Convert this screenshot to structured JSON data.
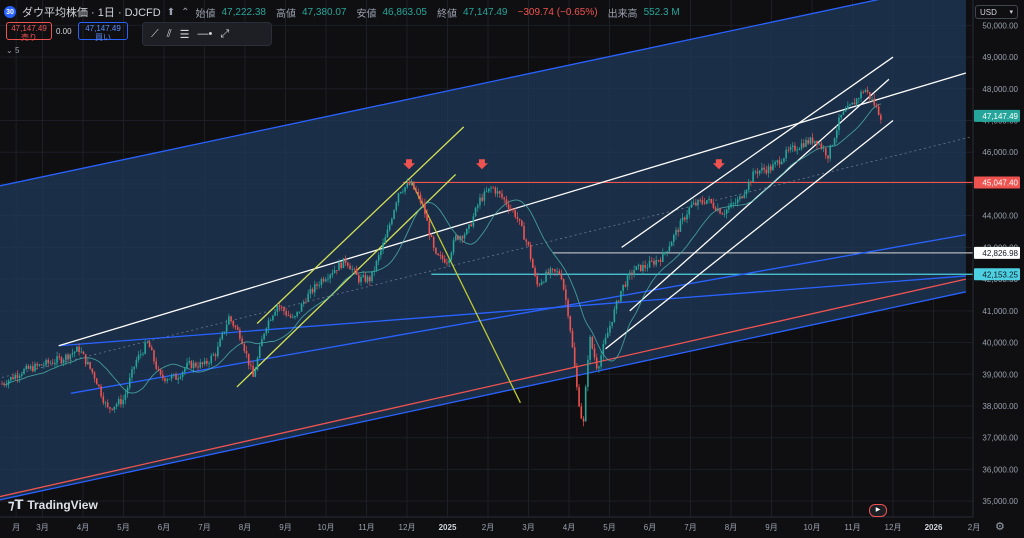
{
  "header": {
    "symbol_badge": "30",
    "title": "ダウ平均株価 · 1日 · DJCFD",
    "ohlc": [
      {
        "label": "始値",
        "value": "47,222.38"
      },
      {
        "label": "高値",
        "value": "47,380.07"
      },
      {
        "label": "安値",
        "value": "46,863.05"
      },
      {
        "label": "終値",
        "value": "47,147.49"
      }
    ],
    "change": "−309.74 (−0.65%)",
    "volume_label": "出来高",
    "volume_value": "552.3 M"
  },
  "trade": {
    "sell_price": "47,147.49",
    "sell_label": "売り",
    "spread": "0.00",
    "buy_price": "47,147.49",
    "buy_label": "買い"
  },
  "indicator": {
    "label": "5"
  },
  "currency": "USD",
  "watermark": "TradingView",
  "colors": {
    "up": "#26a69a",
    "down": "#ef5350",
    "accent": "#2962ff",
    "channel_fill": "#1f3a5a"
  },
  "icons": [
    "up-arrow-icon",
    "collapse-icon",
    "trend-line-icon",
    "channel-icon",
    "fib-icon",
    "ray-icon",
    "brush-icon",
    "gear-icon"
  ],
  "chart_data": {
    "type": "candlestick",
    "ylim": [
      34500,
      50800
    ],
    "price_ticks": [
      35000,
      36000,
      37000,
      38000,
      39000,
      40000,
      41000,
      42000,
      43000,
      44000,
      45000,
      46000,
      47000,
      48000,
      49000,
      50000
    ],
    "price_tick_labels": [
      "35,000.00",
      "36,000.00",
      "37,000.00",
      "38,000.00",
      "39,000.00",
      "40,000.00",
      "41,000.00",
      "42,000.00",
      "43,000.00",
      "44,000.00",
      "45,000.00",
      "46,000.00",
      "47,000.00",
      "48,000.00",
      "49,000.00",
      "50,000.00"
    ],
    "time_ticks": [
      {
        "label": "月",
        "x": 0.35
      },
      {
        "label": "3月",
        "x": 1
      },
      {
        "label": "4月",
        "x": 2
      },
      {
        "label": "5月",
        "x": 3
      },
      {
        "label": "6月",
        "x": 4
      },
      {
        "label": "7月",
        "x": 5
      },
      {
        "label": "8月",
        "x": 6
      },
      {
        "label": "9月",
        "x": 7
      },
      {
        "label": "10月",
        "x": 8
      },
      {
        "label": "11月",
        "x": 9
      },
      {
        "label": "12月",
        "x": 10
      },
      {
        "label": "2025",
        "x": 11
      },
      {
        "label": "2月",
        "x": 12
      },
      {
        "label": "3月",
        "x": 13
      },
      {
        "label": "4月",
        "x": 14
      },
      {
        "label": "5月",
        "x": 15
      },
      {
        "label": "6月",
        "x": 16
      },
      {
        "label": "7月",
        "x": 17
      },
      {
        "label": "8月",
        "x": 18
      },
      {
        "label": "9月",
        "x": 19
      },
      {
        "label": "10月",
        "x": 20
      },
      {
        "label": "11月",
        "x": 21
      },
      {
        "label": "12月",
        "x": 22
      },
      {
        "label": "2026",
        "x": 23
      },
      {
        "label": "2月",
        "x": 24
      }
    ],
    "price_path": [
      [
        0.0,
        38700
      ],
      [
        0.5,
        39100
      ],
      [
        1.0,
        39300
      ],
      [
        1.5,
        39500
      ],
      [
        1.9,
        39800
      ],
      [
        2.3,
        38900
      ],
      [
        2.6,
        37900
      ],
      [
        3.0,
        38200
      ],
      [
        3.3,
        39400
      ],
      [
        3.6,
        40000
      ],
      [
        3.9,
        38900
      ],
      [
        4.3,
        38900
      ],
      [
        4.6,
        39300
      ],
      [
        5.0,
        39300
      ],
      [
        5.3,
        39700
      ],
      [
        5.6,
        40800
      ],
      [
        5.9,
        40200
      ],
      [
        6.2,
        38900
      ],
      [
        6.5,
        40500
      ],
      [
        6.8,
        41200
      ],
      [
        7.2,
        40700
      ],
      [
        7.5,
        41400
      ],
      [
        7.9,
        42000
      ],
      [
        8.2,
        42300
      ],
      [
        8.5,
        42600
      ],
      [
        8.8,
        42000
      ],
      [
        9.1,
        42000
      ],
      [
        9.5,
        43400
      ],
      [
        9.8,
        44800
      ],
      [
        10.1,
        45000
      ],
      [
        10.4,
        44300
      ],
      [
        10.7,
        42700
      ],
      [
        11.0,
        42600
      ],
      [
        11.2,
        43300
      ],
      [
        11.5,
        43500
      ],
      [
        11.8,
        44500
      ],
      [
        12.1,
        44900
      ],
      [
        12.4,
        44500
      ],
      [
        12.7,
        44000
      ],
      [
        13.0,
        43000
      ],
      [
        13.2,
        41800
      ],
      [
        13.5,
        42200
      ],
      [
        13.8,
        42200
      ],
      [
        14.0,
        40800
      ],
      [
        14.2,
        38500
      ],
      [
        14.35,
        37300
      ],
      [
        14.5,
        40200
      ],
      [
        14.7,
        39200
      ],
      [
        15.0,
        40500
      ],
      [
        15.3,
        41700
      ],
      [
        15.6,
        42300
      ],
      [
        15.9,
        42400
      ],
      [
        16.3,
        42700
      ],
      [
        16.7,
        43600
      ],
      [
        17.0,
        44300
      ],
      [
        17.4,
        44500
      ],
      [
        17.8,
        44100
      ],
      [
        18.2,
        44500
      ],
      [
        18.6,
        45400
      ],
      [
        19.0,
        45500
      ],
      [
        19.4,
        46000
      ],
      [
        19.8,
        46300
      ],
      [
        20.1,
        46400
      ],
      [
        20.4,
        45900
      ],
      [
        20.7,
        47100
      ],
      [
        21.0,
        47500
      ],
      [
        21.3,
        48000
      ],
      [
        21.5,
        47600
      ],
      [
        21.7,
        47147
      ]
    ],
    "candle_start_x": 0.0,
    "candle_end_x": 21.7,
    "candle_count": 400,
    "levels": [
      {
        "name": "resistance",
        "value": 45047.4,
        "label": "45,047.40",
        "color": "#ef5350"
      },
      {
        "name": "support-high",
        "value": 42826.98,
        "label": "42,826.98",
        "color": "#b2b5be"
      },
      {
        "name": "support-low",
        "value": 42153.25,
        "label": "42,153.25",
        "color": "#4dd0e1"
      }
    ],
    "last_price": {
      "value": 47147.49,
      "label": "47,147.49"
    },
    "trend_lines": [
      {
        "name": "regression-upper",
        "color": "#2962ff",
        "fill": true,
        "points": [
          [
            -0.2,
            44900
          ],
          [
            23.8,
            51400
          ]
        ],
        "lower": [
          [
            -0.2,
            35000
          ],
          [
            23.8,
            41600
          ]
        ]
      },
      {
        "name": "regression-mid",
        "color": "#ef5350",
        "points": [
          [
            -0.2,
            35100
          ],
          [
            23.8,
            42000
          ]
        ]
      },
      {
        "name": "blue-trend-1",
        "color": "#2962ff",
        "points": [
          [
            1.7,
            38400
          ],
          [
            23.8,
            43400
          ]
        ]
      },
      {
        "name": "blue-trend-2",
        "color": "#2962ff",
        "points": [
          [
            1.4,
            39900
          ],
          [
            23.8,
            42100
          ]
        ]
      },
      {
        "name": "white-trend-1",
        "color": "#ffffff",
        "points": [
          [
            1.4,
            39900
          ],
          [
            23.8,
            48500
          ]
        ]
      },
      {
        "name": "yellow-channel-top",
        "color": "#d4e157",
        "points": [
          [
            6.3,
            40600
          ],
          [
            11.4,
            46800
          ]
        ]
      },
      {
        "name": "yellow-channel-bottom",
        "color": "#d4e157",
        "points": [
          [
            5.8,
            38600
          ],
          [
            11.2,
            45300
          ]
        ]
      },
      {
        "name": "yellow-drop",
        "color": "#c0ca33",
        "points": [
          [
            10.1,
            45100
          ],
          [
            12.8,
            38100
          ]
        ]
      },
      {
        "name": "white-channel-top",
        "color": "#ffffff",
        "points": [
          [
            15.3,
            43000
          ],
          [
            22.0,
            49000
          ]
        ]
      },
      {
        "name": "white-channel-mid",
        "color": "#ffffff",
        "points": [
          [
            15.5,
            41000
          ],
          [
            21.9,
            48300
          ]
        ]
      },
      {
        "name": "white-channel-bottom",
        "color": "#ffffff",
        "points": [
          [
            14.9,
            39800
          ],
          [
            22.0,
            47000
          ]
        ]
      }
    ],
    "markers": [
      {
        "name": "peak-marker",
        "x": 10.05,
        "value": 45400
      },
      {
        "name": "peak-marker",
        "x": 11.85,
        "value": 45400
      },
      {
        "name": "peak-marker",
        "x": 17.7,
        "value": 45400
      }
    ]
  }
}
